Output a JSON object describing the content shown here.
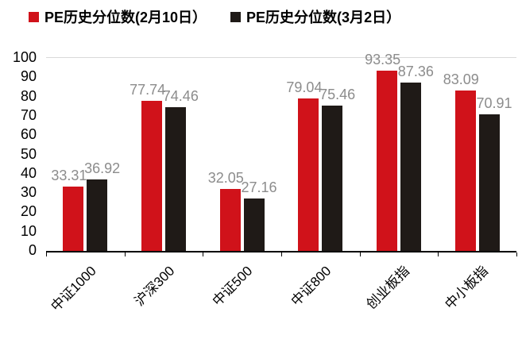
{
  "chart_data": {
    "type": "bar",
    "title": "",
    "categories": [
      "中证1000",
      "沪深300",
      "中证500",
      "中证800",
      "创业板指",
      "中小板指"
    ],
    "series": [
      {
        "name": "PE历史分位数(2月10日）",
        "color": "#d0121a",
        "values": [
          33.31,
          77.74,
          32.05,
          79.04,
          93.35,
          83.09
        ]
      },
      {
        "name": "PE历史分位数(3月2日）",
        "color": "#1f1a17",
        "values": [
          36.92,
          74.46,
          27.16,
          75.46,
          87.36,
          70.91
        ]
      }
    ],
    "xlabel": "",
    "ylabel": "",
    "ylim": [
      0,
      100
    ],
    "ytick_step": 10,
    "grid": false,
    "legend_position": "top",
    "value_labels": true,
    "value_label_color": "#8c8c8c",
    "axis_color": "#000000"
  }
}
